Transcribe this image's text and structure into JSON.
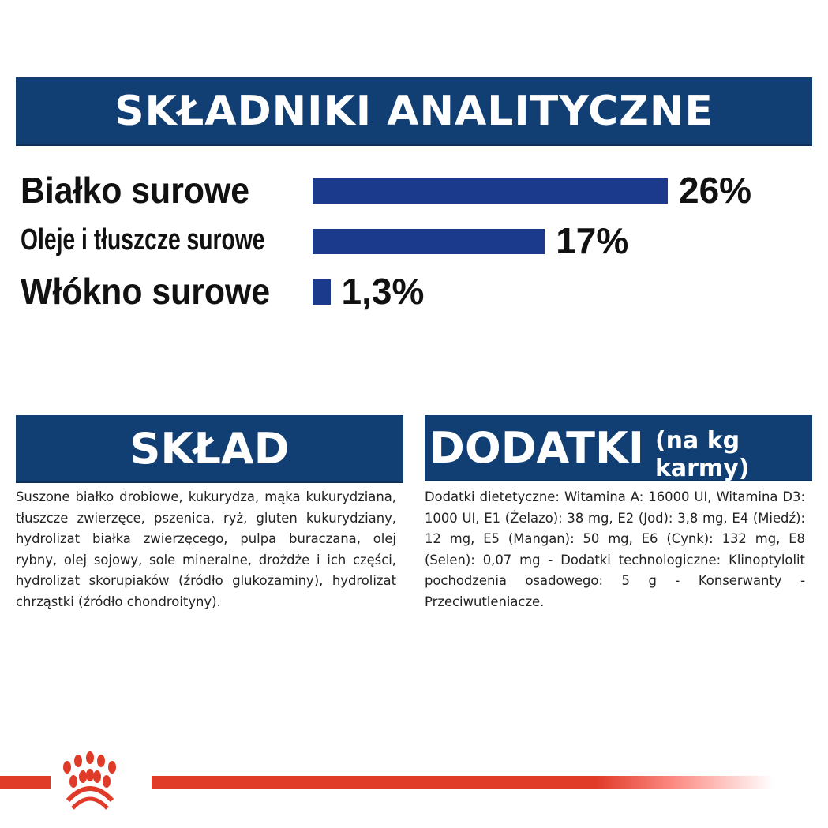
{
  "title": "SKŁADNIKI ANALITYCZNE",
  "chart_data": {
    "type": "bar",
    "orientation": "horizontal",
    "categories": [
      "Białko surowe",
      "Oleje i tłuszcze surowe",
      "Włókno surowe"
    ],
    "values": [
      26,
      17,
      1.3
    ],
    "value_labels": [
      "26%",
      "17%",
      "1,3%"
    ],
    "unit": "%",
    "bar_color": "#1c3a8c"
  },
  "sklad": {
    "heading": "SKŁAD",
    "text": "Suszone białko drobiowe, kukurydza, mąka kukurydziana, tłuszcze zwierzęce, pszenica, ryż, gluten kukurydziany, hydrolizat białka zwierzęcego, pulpa buraczana, olej rybny, olej sojowy, sole mineralne, drożdże i ich części, hydrolizat skorupiaków (źródło glukozaminy), hydrolizat chrząstki (źródło chondroityny)."
  },
  "dodatki": {
    "heading": "DODATKI",
    "subheading": "(na kg karmy)",
    "text": "Dodatki dietetyczne: Witamina A: 16000 UI, Witamina D3: 1000 UI, E1 (Żelazo): 38 mg, E2 (Jod): 3,8 mg, E4 (Miedź): 12 mg, E5 (Mangan): 50 mg, E6 (Cynk): 132 mg, E8 (Selen): 0,07 mg - Dodatki technologiczne: Klinoptylolit pochodzenia osadowego: 5 g - Konserwanty - Przeciwutleniacze."
  },
  "colors": {
    "banner": "#123f73",
    "bar": "#1c3a8c",
    "brand_red": "#e03a28"
  },
  "logo_icon": "royal-canin-crown-logo"
}
